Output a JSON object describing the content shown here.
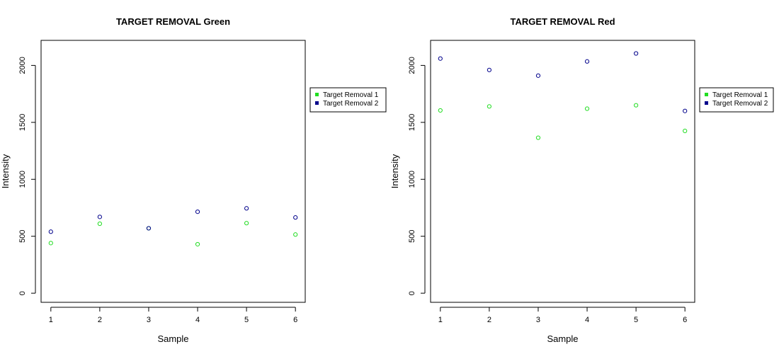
{
  "chart_data": [
    {
      "type": "scatter",
      "title": "TARGET REMOVAL Green",
      "xlabel": "Sample",
      "ylabel": "Intensity",
      "x": [
        1,
        2,
        3,
        4,
        5,
        6
      ],
      "xticks": [
        "1",
        "2",
        "3",
        "4",
        "5",
        "6"
      ],
      "yticks": [
        "0",
        "500",
        "1000",
        "1500",
        "2000"
      ],
      "ylim": [
        -80,
        2220
      ],
      "grid": false,
      "legend_position": "right",
      "series": [
        {
          "name": "Target Removal 1",
          "color": "#22dd22",
          "values": [
            440,
            610,
            570,
            430,
            615,
            515
          ]
        },
        {
          "name": "Target Removal 2",
          "color": "#00008b",
          "values": [
            540,
            670,
            570,
            715,
            745,
            665
          ]
        }
      ]
    },
    {
      "type": "scatter",
      "title": "TARGET REMOVAL Red",
      "xlabel": "Sample",
      "ylabel": "Intensity",
      "x": [
        1,
        2,
        3,
        4,
        5,
        6
      ],
      "xticks": [
        "1",
        "2",
        "3",
        "4",
        "5",
        "6"
      ],
      "yticks": [
        "0",
        "500",
        "1000",
        "1500",
        "2000"
      ],
      "ylim": [
        -80,
        2220
      ],
      "grid": false,
      "legend_position": "right",
      "series": [
        {
          "name": "Target Removal 1",
          "color": "#22dd22",
          "values": [
            1605,
            1640,
            1365,
            1620,
            1650,
            1425
          ]
        },
        {
          "name": "Target Removal 2",
          "color": "#00008b",
          "values": [
            2060,
            1960,
            1910,
            2035,
            2105,
            1600
          ]
        }
      ]
    }
  ]
}
